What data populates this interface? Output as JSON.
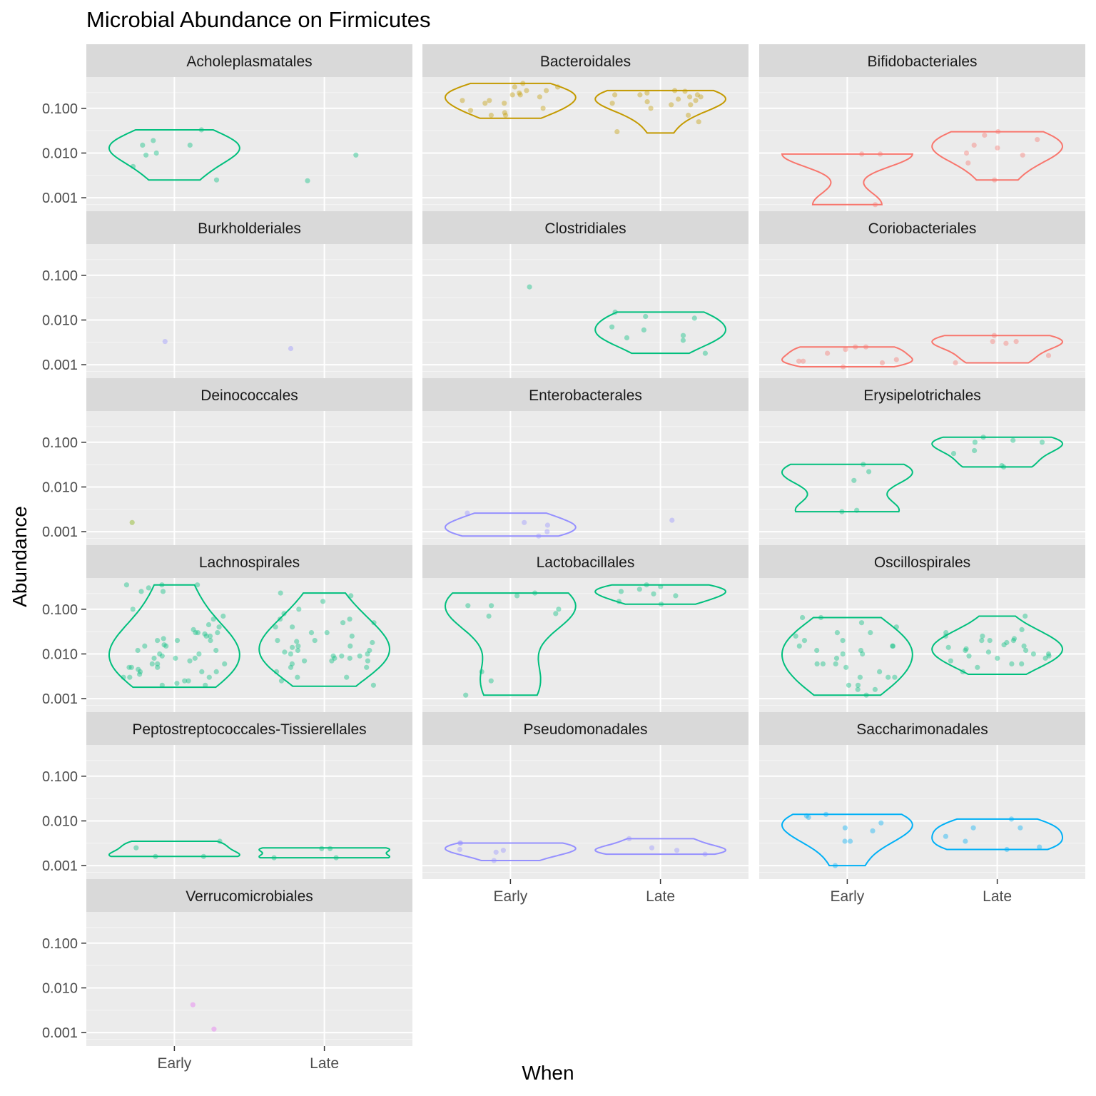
{
  "chart_data": {
    "type": "violin",
    "title": "Microbial Abundance on Firmicutes",
    "xlabel": "When",
    "ylabel": "Abundance",
    "y_scale": "log10",
    "ylim": [
      0.0005,
      0.5
    ],
    "y_ticks": [
      0.001,
      0.01,
      0.1
    ],
    "y_tick_labels": [
      "0.001",
      "0.010",
      "0.100"
    ],
    "categories": [
      "Early",
      "Late"
    ],
    "grid": true,
    "legend": "none",
    "facets": [
      {
        "name": "Acholeplasmatales",
        "color": "#00BF7D",
        "groups": {
          "Early": {
            "min": 0.0025,
            "max": 0.033,
            "points": [
              0.015,
              0.0025,
              0.019,
              0.005,
              0.009,
              0.033,
              0.015,
              0.01
            ]
          },
          "Late": {
            "min": null,
            "max": null,
            "points": [
              0.009,
              0.0024
            ]
          }
        }
      },
      {
        "name": "Bacteroidales",
        "color": "#C49A00",
        "groups": {
          "Early": {
            "min": 0.06,
            "max": 0.36,
            "points": [
              0.36,
              0.25,
              0.3,
              0.2,
              0.15,
              0.07,
              0.08,
              0.22,
              0.13,
              0.1,
              0.09,
              0.18,
              0.15,
              0.07,
              0.13,
              0.3,
              0.2,
              0.25
            ]
          },
          "Late": {
            "min": 0.028,
            "max": 0.25,
            "points": [
              0.24,
              0.22,
              0.15,
              0.13,
              0.2,
              0.1,
              0.05,
              0.03,
              0.18,
              0.25,
              0.2,
              0.14,
              0.07,
              0.12,
              0.12,
              0.16,
              0.2,
              0.18
            ]
          }
        }
      },
      {
        "name": "Bifidobacteriales",
        "color": "#F8766D",
        "groups": {
          "Early": {
            "min": 0.0007,
            "max": 0.0095,
            "points": [
              0.0007,
              0.0095,
              0.0095
            ]
          },
          "Late": {
            "min": 0.0025,
            "max": 0.03,
            "points": [
              0.0025,
              0.009,
              0.015,
              0.01,
              0.013,
              0.006,
              0.025,
              0.03,
              0.02
            ]
          }
        }
      },
      {
        "name": "Burkholderiales",
        "color": "#9590FF",
        "groups": {
          "Early": {
            "min": null,
            "max": null,
            "points": [
              0.0033
            ]
          },
          "Late": {
            "min": null,
            "max": null,
            "points": [
              0.0023
            ]
          }
        }
      },
      {
        "name": "Clostridiales",
        "color": "#00BF7D",
        "groups": {
          "Early": {
            "min": null,
            "max": null,
            "points": [
              0.055
            ]
          },
          "Late": {
            "min": 0.0018,
            "max": 0.015,
            "points": [
              0.0045,
              0.0018,
              0.007,
              0.0035,
              0.004,
              0.012,
              0.011,
              0.006,
              0.015
            ]
          }
        }
      },
      {
        "name": "Coriobacteriales",
        "color": "#F8766D",
        "groups": {
          "Early": {
            "min": 0.0009,
            "max": 0.0025,
            "points": [
              0.0009,
              0.0011,
              0.0025,
              0.0012,
              0.0012,
              0.0018,
              0.0013,
              0.0022,
              0.0025
            ]
          },
          "Late": {
            "min": 0.0011,
            "max": 0.0045,
            "points": [
              0.0033,
              0.0045,
              0.0011,
              0.003,
              0.0033,
              0.0016
            ]
          }
        }
      },
      {
        "name": "Deinococcales",
        "color": "#7CAE00",
        "groups": {
          "Early": {
            "min": null,
            "max": null,
            "points": [
              0.0016
            ]
          },
          "Late": {
            "min": null,
            "max": null,
            "points": []
          }
        }
      },
      {
        "name": "Enterobacterales",
        "color": "#9590FF",
        "groups": {
          "Early": {
            "min": 0.0008,
            "max": 0.0026,
            "points": [
              0.0014,
              0.0008,
              0.0016,
              0.0026,
              0.001
            ]
          },
          "Late": {
            "min": null,
            "max": null,
            "points": [
              0.0018
            ]
          }
        }
      },
      {
        "name": "Erysipelotrichales",
        "color": "#00BF7D",
        "groups": {
          "Early": {
            "min": 0.0028,
            "max": 0.032,
            "points": [
              0.014,
              0.032,
              0.0028,
              0.022,
              0.003
            ]
          },
          "Late": {
            "min": 0.028,
            "max": 0.13,
            "points": [
              0.028,
              0.1,
              0.056,
              0.13,
              0.11,
              0.03,
              0.065,
              0.1
            ]
          }
        }
      },
      {
        "name": "Lachnospirales",
        "color": "#00BF7D",
        "groups": {
          "Early": {
            "min": 0.0018,
            "max": 0.35,
            "points": [
              0.25,
              0.35,
              0.3,
              0.35,
              0.1,
              0.07,
              0.03,
              0.025,
              0.02,
              0.015,
              0.01,
              0.008,
              0.006,
              0.005,
              0.004,
              0.003,
              0.002,
              0.0025,
              0.04,
              0.03,
              0.02,
              0.012,
              0.008,
              0.006,
              0.005,
              0.0045,
              0.004,
              0.0035,
              0.003,
              0.0025,
              0.002,
              0.035,
              0.028,
              0.022,
              0.016,
              0.012,
              0.009,
              0.007,
              0.005,
              0.004,
              0.003,
              0.0022,
              0.25,
              0.35,
              0.06,
              0.045,
              0.03,
              0.025,
              0.02,
              0.015,
              0.01,
              0.008,
              0.006
            ]
          },
          "Late": {
            "min": 0.0019,
            "max": 0.23,
            "points": [
              0.23,
              0.2,
              0.15,
              0.1,
              0.08,
              0.06,
              0.05,
              0.04,
              0.03,
              0.025,
              0.02,
              0.015,
              0.012,
              0.01,
              0.009,
              0.008,
              0.007,
              0.006,
              0.005,
              0.004,
              0.003,
              0.0025,
              0.002,
              0.019,
              0.015,
              0.011,
              0.009,
              0.007,
              0.005,
              0.003,
              0.05,
              0.06,
              0.04,
              0.03,
              0.02,
              0.018,
              0.014,
              0.012,
              0.01,
              0.009,
              0.008,
              0.007
            ]
          }
        }
      },
      {
        "name": "Lactobacillales",
        "color": "#00BF7D",
        "groups": {
          "Early": {
            "min": 0.0012,
            "max": 0.23,
            "points": [
              0.23,
              0.1,
              0.2,
              0.07,
              0.12,
              0.12,
              0.08,
              0.004,
              0.0025,
              0.0012
            ]
          },
          "Late": {
            "min": 0.13,
            "max": 0.35,
            "points": [
              0.15,
              0.2,
              0.25,
              0.35,
              0.32,
              0.13,
              0.22,
              0.28
            ]
          }
        }
      },
      {
        "name": "Oscillospirales",
        "color": "#00BF7D",
        "groups": {
          "Early": {
            "min": 0.0012,
            "max": 0.065,
            "points": [
              0.05,
              0.03,
              0.02,
              0.015,
              0.01,
              0.006,
              0.004,
              0.003,
              0.002,
              0.0012,
              0.065,
              0.065,
              0.04,
              0.03,
              0.025,
              0.02,
              0.015,
              0.012,
              0.01,
              0.008,
              0.006,
              0.005,
              0.003,
              0.002,
              0.0016,
              0.015,
              0.012,
              0.006,
              0.003,
              0.0016
            ]
          },
          "Late": {
            "min": 0.0035,
            "max": 0.07,
            "points": [
              0.035,
              0.025,
              0.02,
              0.018,
              0.016,
              0.014,
              0.012,
              0.01,
              0.009,
              0.008,
              0.007,
              0.006,
              0.005,
              0.004,
              0.022,
              0.02,
              0.015,
              0.013,
              0.011,
              0.009,
              0.07,
              0.03,
              0.025,
              0.012,
              0.01,
              0.008,
              0.006,
              0.02
            ]
          }
        }
      },
      {
        "name": "Peptostreptococcales-Tissierellales",
        "color": "#00BF7D",
        "groups": {
          "Early": {
            "min": 0.0016,
            "max": 0.0035,
            "points": [
              0.0025,
              0.0016,
              0.0035,
              0.0016
            ]
          },
          "Late": {
            "min": 0.0015,
            "max": 0.0025,
            "points": [
              0.0015,
              0.0015,
              0.0024,
              0.0024
            ]
          }
        }
      },
      {
        "name": "Pseudomonadales",
        "color": "#9590FF",
        "groups": {
          "Early": {
            "min": 0.0013,
            "max": 0.0032,
            "points": [
              0.0023,
              0.0032,
              0.0032,
              0.0013,
              0.002,
              0.0022
            ]
          },
          "Late": {
            "min": 0.0018,
            "max": 0.004,
            "points": [
              0.0025,
              0.0018,
              0.004,
              0.0022
            ]
          }
        }
      },
      {
        "name": "Saccharimonadales",
        "color": "#00B0F6",
        "groups": {
          "Early": {
            "min": 0.001,
            "max": 0.014,
            "points": [
              0.012,
              0.006,
              0.0035,
              0.001,
              0.007,
              0.014,
              0.013,
              0.009,
              0.0035
            ]
          },
          "Late": {
            "min": 0.0023,
            "max": 0.011,
            "points": [
              0.007,
              0.0035,
              0.0023,
              0.011,
              0.0045,
              0.0026,
              0.007
            ]
          }
        }
      },
      {
        "name": "Verrucomicrobiales",
        "color": "#E76BF3",
        "groups": {
          "Early": {
            "min": null,
            "max": null,
            "points": [
              0.0042,
              0.0012
            ]
          },
          "Late": {
            "min": null,
            "max": null,
            "points": []
          }
        }
      }
    ]
  }
}
